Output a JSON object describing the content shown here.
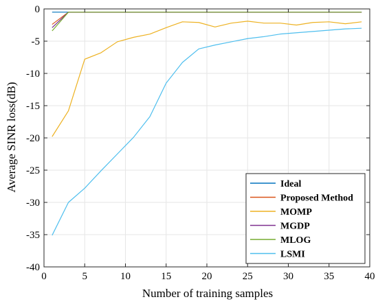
{
  "chart_data": {
    "type": "line",
    "title": "",
    "xlabel": "Number of training samples",
    "ylabel": "Average SINR loss(dB)",
    "xlim": [
      0,
      40
    ],
    "ylim": [
      -40,
      0
    ],
    "xticks": [
      0,
      5,
      10,
      15,
      20,
      25,
      30,
      35,
      40
    ],
    "yticks": [
      0,
      -5,
      -10,
      -15,
      -20,
      -25,
      -30,
      -35,
      -40
    ],
    "xtick_labels": [
      "0",
      "5",
      "10",
      "15",
      "20",
      "25",
      "30",
      "35",
      "40"
    ],
    "ytick_labels": [
      "0",
      "-5",
      "-10",
      "-15",
      "-20",
      "-25",
      "-30",
      "-35",
      "-40"
    ],
    "grid": true,
    "legend_position": "bottom-right",
    "series": [
      {
        "name": "Ideal",
        "color": "#0072BD",
        "x": [
          1,
          3,
          5,
          7,
          9,
          11,
          13,
          15,
          17,
          19,
          21,
          23,
          25,
          27,
          29,
          31,
          33,
          35,
          37,
          39
        ],
        "y": [
          -0.5,
          -0.5,
          -0.5,
          -0.5,
          -0.5,
          -0.5,
          -0.5,
          -0.5,
          -0.5,
          -0.5,
          -0.5,
          -0.5,
          -0.5,
          -0.5,
          -0.5,
          -0.5,
          -0.5,
          -0.5,
          -0.5,
          -0.5
        ]
      },
      {
        "name": "Proposed Method",
        "color": "#D95319",
        "x": [
          1,
          3,
          5,
          7,
          9,
          11,
          13,
          15,
          17,
          19,
          21,
          23,
          25,
          27,
          29,
          31,
          33,
          35,
          37,
          39
        ],
        "y": [
          -2.4,
          -0.5,
          -0.5,
          -0.5,
          -0.5,
          -0.5,
          -0.5,
          -0.5,
          -0.5,
          -0.5,
          -0.5,
          -0.5,
          -0.5,
          -0.5,
          -0.5,
          -0.5,
          -0.5,
          -0.5,
          -0.5,
          -0.5
        ]
      },
      {
        "name": "MOMP",
        "color": "#EDB120",
        "x": [
          1,
          3,
          5,
          7,
          9,
          11,
          13,
          15,
          17,
          19,
          21,
          23,
          25,
          27,
          29,
          31,
          33,
          35,
          37,
          39
        ],
        "y": [
          -19.8,
          -15.8,
          -7.8,
          -6.8,
          -5.1,
          -4.4,
          -3.9,
          -2.9,
          -2.0,
          -2.1,
          -2.8,
          -2.2,
          -1.9,
          -2.2,
          -2.2,
          -2.5,
          -2.1,
          -2.0,
          -2.3,
          -2.0
        ]
      },
      {
        "name": "MGDP",
        "color": "#7E2F8E",
        "x": [
          1,
          3,
          5,
          7,
          9,
          11,
          13,
          15,
          17,
          19,
          21,
          23,
          25,
          27,
          29,
          31,
          33,
          35,
          37,
          39
        ],
        "y": [
          -2.9,
          -0.5,
          -0.5,
          -0.5,
          -0.5,
          -0.5,
          -0.5,
          -0.5,
          -0.5,
          -0.5,
          -0.5,
          -0.5,
          -0.5,
          -0.5,
          -0.5,
          -0.5,
          -0.5,
          -0.5,
          -0.5,
          -0.5
        ]
      },
      {
        "name": "MLOG",
        "color": "#77AC30",
        "x": [
          1,
          3,
          5,
          7,
          9,
          11,
          13,
          15,
          17,
          19,
          21,
          23,
          25,
          27,
          29,
          31,
          33,
          35,
          37,
          39
        ],
        "y": [
          -3.4,
          -0.5,
          -0.5,
          -0.5,
          -0.5,
          -0.5,
          -0.5,
          -0.5,
          -0.5,
          -0.5,
          -0.5,
          -0.5,
          -0.5,
          -0.5,
          -0.5,
          -0.5,
          -0.5,
          -0.5,
          -0.5,
          -0.5
        ]
      },
      {
        "name": "LSMI",
        "color": "#4DBEEE",
        "x": [
          1,
          3,
          5,
          7,
          9,
          11,
          13,
          15,
          17,
          19,
          21,
          23,
          25,
          27,
          29,
          31,
          33,
          35,
          37,
          39
        ],
        "y": [
          -35.1,
          -30.0,
          -27.8,
          -25.1,
          -22.5,
          -19.9,
          -16.7,
          -11.5,
          -8.3,
          -6.2,
          -5.6,
          -5.1,
          -4.6,
          -4.3,
          -3.9,
          -3.7,
          -3.5,
          -3.3,
          -3.1,
          -3.0
        ]
      }
    ]
  }
}
